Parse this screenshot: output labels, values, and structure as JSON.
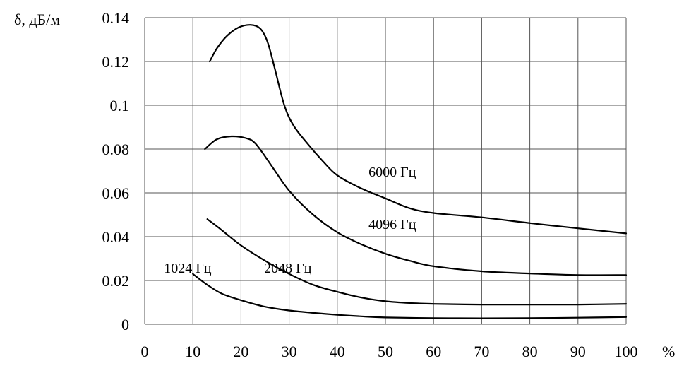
{
  "chart_data": {
    "type": "line",
    "ylabel": "δ, дБ/м",
    "xlabel": "%",
    "xlim": [
      0,
      100
    ],
    "ylim": [
      0,
      0.14
    ],
    "x_ticks": [
      0,
      10,
      20,
      30,
      40,
      50,
      60,
      70,
      80,
      90,
      100
    ],
    "y_ticks": [
      0,
      0.02,
      0.04,
      0.06,
      0.08,
      0.1,
      0.12,
      0.14
    ],
    "x_tick_labels": [
      "0",
      "10",
      "20",
      "30",
      "40",
      "50",
      "60",
      "70",
      "80",
      "90",
      "100"
    ],
    "y_tick_labels": [
      "0",
      "0.02",
      "0.04",
      "0.06",
      "0.08",
      "0.1",
      "0.12",
      "0.14"
    ],
    "grid": true,
    "legend": "none",
    "series": [
      {
        "name": "1024 Гц",
        "points": [
          [
            10,
            0.023
          ],
          [
            13,
            0.018
          ],
          [
            16,
            0.014
          ],
          [
            20,
            0.011
          ],
          [
            25,
            0.008
          ],
          [
            30,
            0.0063
          ],
          [
            35,
            0.0052
          ],
          [
            40,
            0.0043
          ],
          [
            45,
            0.0036
          ],
          [
            50,
            0.0031
          ],
          [
            60,
            0.0028
          ],
          [
            70,
            0.0027
          ],
          [
            80,
            0.0028
          ],
          [
            90,
            0.003
          ],
          [
            100,
            0.0033
          ]
        ]
      },
      {
        "name": "2048 Гц",
        "points": [
          [
            13,
            0.048
          ],
          [
            16,
            0.043
          ],
          [
            20,
            0.036
          ],
          [
            25,
            0.029
          ],
          [
            30,
            0.023
          ],
          [
            35,
            0.018
          ],
          [
            40,
            0.0148
          ],
          [
            45,
            0.0122
          ],
          [
            50,
            0.0105
          ],
          [
            55,
            0.0097
          ],
          [
            60,
            0.0093
          ],
          [
            70,
            0.009
          ],
          [
            80,
            0.009
          ],
          [
            90,
            0.009
          ],
          [
            100,
            0.0093
          ]
        ]
      },
      {
        "name": "4096 Гц",
        "points": [
          [
            12.5,
            0.08
          ],
          [
            15,
            0.0845
          ],
          [
            18,
            0.0858
          ],
          [
            21,
            0.085
          ],
          [
            23,
            0.0825
          ],
          [
            26,
            0.0735
          ],
          [
            30,
            0.061
          ],
          [
            35,
            0.05
          ],
          [
            40,
            0.042
          ],
          [
            45,
            0.0365
          ],
          [
            50,
            0.0322
          ],
          [
            55,
            0.029
          ],
          [
            60,
            0.0265
          ],
          [
            70,
            0.0242
          ],
          [
            80,
            0.0232
          ],
          [
            90,
            0.0225
          ],
          [
            100,
            0.0225
          ]
        ]
      },
      {
        "name": "6000 Гц",
        "points": [
          [
            13.5,
            0.12
          ],
          [
            15,
            0.126
          ],
          [
            17,
            0.1315
          ],
          [
            19.5,
            0.1355
          ],
          [
            22,
            0.1367
          ],
          [
            24,
            0.135
          ],
          [
            25.5,
            0.129
          ],
          [
            27,
            0.117
          ],
          [
            29,
            0.1
          ],
          [
            31,
            0.0905
          ],
          [
            34,
            0.082
          ],
          [
            37,
            0.0745
          ],
          [
            40,
            0.068
          ],
          [
            45,
            0.062
          ],
          [
            50,
            0.0575
          ],
          [
            55,
            0.053
          ],
          [
            60,
            0.0508
          ],
          [
            70,
            0.0488
          ],
          [
            80,
            0.0462
          ],
          [
            90,
            0.0438
          ],
          [
            100,
            0.0415
          ]
        ]
      }
    ]
  },
  "series_labels": [
    {
      "text": "1024 Гц",
      "x": 4,
      "y": 0.0235
    },
    {
      "text": "2048 Гц",
      "x": 24.8,
      "y": 0.0235
    },
    {
      "text": "4096 Гц",
      "x": 46.5,
      "y": 0.0435
    },
    {
      "text": "6000 Гц",
      "x": 46.5,
      "y": 0.0675
    }
  ]
}
